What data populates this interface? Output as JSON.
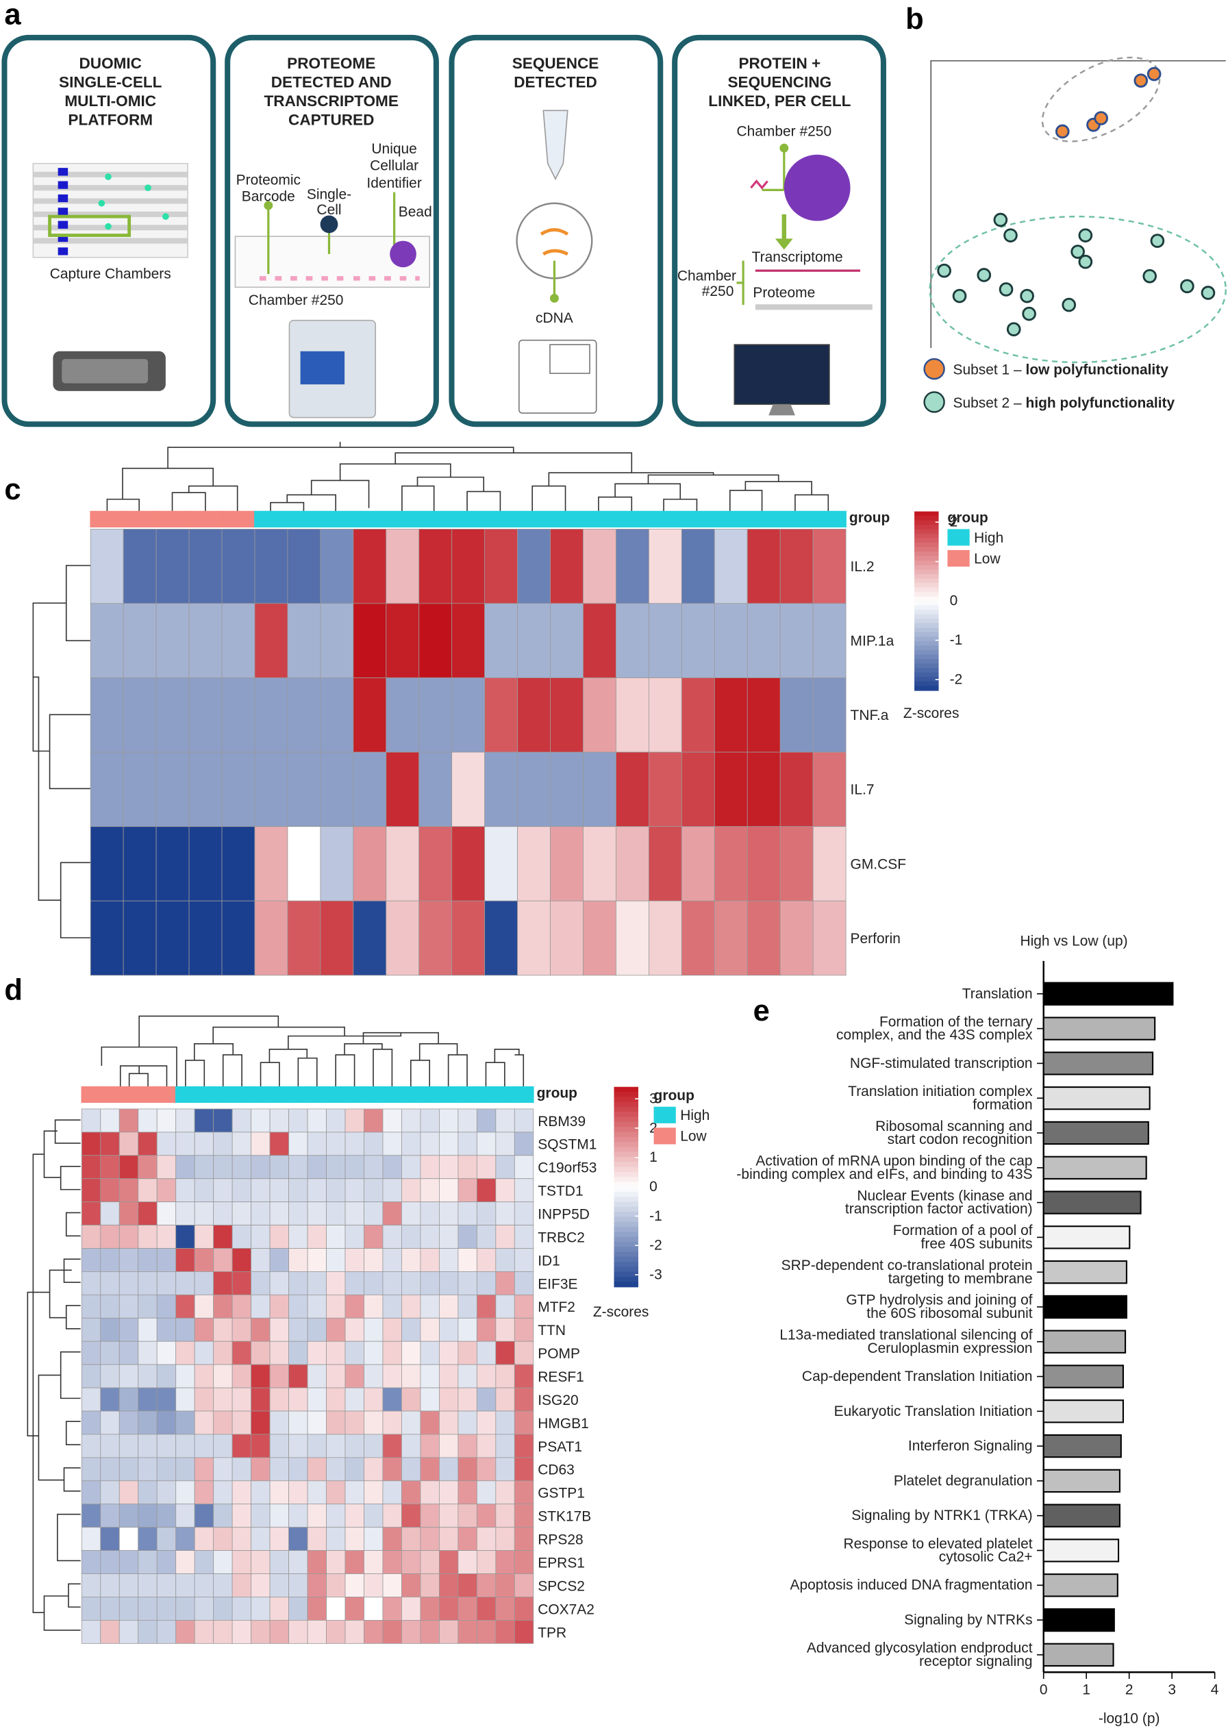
{
  "panel_labels": [
    "a",
    "b",
    "c",
    "d",
    "e"
  ],
  "diagram": {
    "boxes": [
      {
        "title": [
          "DUOMIC",
          "SINGLE-CELL",
          "MULTI-OMIC",
          "PLATFORM"
        ],
        "labels": [
          "Capture Chambers"
        ]
      },
      {
        "title": [
          "PROTEOME",
          "DETECTED AND",
          "TRANSCRIPTOME",
          "CAPTURED"
        ],
        "labels": [
          "Proteomic",
          "Barcode",
          "Single-",
          "Cell",
          "Unique",
          "Cellular",
          "Identifier",
          "Bead",
          "Chamber #250"
        ]
      },
      {
        "title": [
          "SEQUENCE",
          "DETECTED"
        ],
        "labels": [
          "cDNA"
        ]
      },
      {
        "title": [
          "PROTEIN +",
          "SEQUENCING",
          "LINKED, PER CELL"
        ],
        "labels": [
          "Chamber #250",
          "Transcriptome",
          "Chamber",
          "#250",
          "Proteome"
        ]
      }
    ]
  },
  "chart_data": [
    {
      "type": "scatter",
      "xlim": [
        0,
        100
      ],
      "ylim": [
        0,
        100
      ],
      "series": [
        {
          "name": "Subset 1 –",
          "description": "low polyfunctionality",
          "color": "#ef8a3c",
          "edgecolor": "#2f4f8f",
          "x": [
            71.2,
            75.7,
            44.6,
            55.1,
            57.7
          ],
          "y": [
            93.1,
            95.4,
            75.4,
            77.7,
            80.0
          ]
        },
        {
          "name": "Subset 2 –",
          "description": "high polyfunctionality",
          "color": "#a3dcc9",
          "edgecolor": "#1c3b3b",
          "x": [
            23.6,
            27.0,
            4.5,
            9.7,
            18.0,
            25.5,
            32.6,
            33.3,
            28.1,
            46.8,
            49.8,
            52.4,
            52.4,
            76.8,
            74.2,
            86.9,
            94.0
          ],
          "y": [
            44.6,
            39.2,
            26.9,
            18.1,
            25.4,
            20.4,
            18.1,
            11.9,
            6.5,
            15.0,
            33.5,
            39.2,
            30.0,
            37.3,
            25.0,
            21.5,
            19.2
          ]
        }
      ]
    },
    {
      "type": "heatmap",
      "group_label": "group",
      "legend_title": "group",
      "colorbar_title": "Z-scores",
      "legend": [
        {
          "name": "High",
          "color": "#22d3df"
        },
        {
          "name": "Low",
          "color": "#f4877f"
        }
      ],
      "zticks": [
        2,
        1,
        0,
        -1,
        -2
      ],
      "columns_group": [
        "Low",
        "Low",
        "Low",
        "Low",
        "Low",
        "High",
        "High",
        "High",
        "High",
        "High",
        "High",
        "High",
        "High",
        "High",
        "High",
        "High",
        "High",
        "High",
        "High",
        "High",
        "High",
        "High",
        "High"
      ],
      "rows": [
        "IL.2",
        "MIP.1a",
        "TNF.a",
        "IL.7",
        "GM.CSF",
        "Perforin"
      ],
      "values": [
        [
          -0.5,
          -1.5,
          -1.5,
          -1.5,
          -1.5,
          -1.5,
          -1.5,
          -1.2,
          1.8,
          0.6,
          1.8,
          1.8,
          1.6,
          -1.3,
          1.7,
          0.6,
          -1.3,
          0.3,
          -1.4,
          -0.5,
          1.7,
          1.6,
          1.3
        ],
        [
          -0.8,
          -0.8,
          -0.8,
          -0.8,
          -0.8,
          1.6,
          -0.8,
          -0.8,
          2,
          1.9,
          2,
          1.9,
          -0.8,
          -0.8,
          -0.8,
          1.7,
          -0.8,
          -0.8,
          -0.8,
          -0.8,
          -0.8,
          -0.8,
          -0.8
        ],
        [
          -1,
          -1,
          -1,
          -1,
          -1,
          -1,
          -1,
          -1,
          1.9,
          -1,
          -1,
          -1,
          1.4,
          1.7,
          1.7,
          0.8,
          0.4,
          0.4,
          1.5,
          1.9,
          1.9,
          -1.1,
          -1.1
        ],
        [
          -1,
          -1,
          -1,
          -1,
          -1,
          -1,
          -1,
          -1,
          -1,
          1.8,
          -1,
          0.3,
          -1,
          -1,
          -1,
          -1,
          1.7,
          1.4,
          1.6,
          1.9,
          1.9,
          1.7,
          1.2
        ],
        [
          -2,
          -2,
          -2,
          -2,
          -2,
          0.7,
          0,
          -0.6,
          0.9,
          0.4,
          1.3,
          1.7,
          -0.2,
          0.4,
          0.8,
          0.4,
          0.6,
          1.5,
          0.8,
          1.2,
          1.3,
          1.2,
          0.4
        ],
        [
          -2,
          -2,
          -2,
          -2,
          -2,
          0.8,
          1.4,
          1.6,
          -1.9,
          0.5,
          1.2,
          1.4,
          -1.9,
          0.4,
          0.5,
          0.8,
          0.2,
          0.4,
          1.2,
          1,
          1.2,
          0.8,
          0.6
        ]
      ]
    },
    {
      "type": "heatmap",
      "group_label": "group",
      "legend_title": "group",
      "colorbar_title": "Z-scores",
      "legend": [
        {
          "name": "High",
          "color": "#22d3df"
        },
        {
          "name": "Low",
          "color": "#f4877f"
        }
      ],
      "zticks": [
        3,
        2,
        1,
        0,
        -1,
        -2,
        -3
      ],
      "columns_group": [
        "Low",
        "Low",
        "Low",
        "Low",
        "Low",
        "High",
        "High",
        "High",
        "High",
        "High",
        "High",
        "High",
        "High",
        "High",
        "High",
        "High",
        "High",
        "High",
        "High",
        "High",
        "High",
        "High",
        "High",
        "High"
      ],
      "rows": [
        "RBM39",
        "SQSTM1",
        "C19orf53",
        "TSTD1",
        "INPP5D",
        "TRBC2",
        "ID1",
        "EIF3E",
        "MTF2",
        "TTN",
        "POMP",
        "RESF1",
        "ISG20",
        "HMGB1",
        "PSAT1",
        "CD63",
        "GSTP1",
        "STK17B",
        "RPS28",
        "EPRS1",
        "SPCS2",
        "COX7A2",
        "TPR"
      ],
      "values": [
        [
          -0.5,
          -0.3,
          1.5,
          -0.3,
          -0.2,
          -0.4,
          -2.5,
          -2.5,
          -0.5,
          -0.3,
          -0.4,
          -0.5,
          -0.3,
          -0.5,
          0.6,
          1.5,
          -0.2,
          -0.4,
          -0.5,
          -0.3,
          -0.4,
          -1,
          -0.4,
          -0.5
        ],
        [
          2.5,
          2.3,
          0.8,
          2.3,
          -0.5,
          -0.5,
          -0.5,
          -0.6,
          -0.4,
          0.3,
          2.2,
          -0.3,
          -0.5,
          -0.5,
          -0.5,
          -0.6,
          -0.3,
          -0.5,
          -0.4,
          -0.3,
          -0.5,
          -0.3,
          -0.4,
          -1
        ],
        [
          2.3,
          2,
          2.5,
          1.5,
          0.5,
          -1,
          -0.8,
          -0.8,
          -0.8,
          -0.9,
          -0.8,
          -0.7,
          -0.9,
          -0.8,
          -0.8,
          -0.7,
          -0.9,
          -0.5,
          0.5,
          0.4,
          0.6,
          0.5,
          -0.7,
          -0.3
        ],
        [
          2.3,
          1.8,
          1.6,
          0.6,
          1,
          -0.5,
          -0.6,
          -0.5,
          -0.6,
          -0.5,
          -0.5,
          -0.6,
          -0.5,
          -0.6,
          -0.5,
          -0.6,
          -0.5,
          0.5,
          0.3,
          0.2,
          1,
          2.3,
          0.4,
          -0.4
        ],
        [
          2.2,
          -0.5,
          1.6,
          2.3,
          -0.2,
          -0.4,
          -0.4,
          -0.5,
          -0.4,
          -0.5,
          -0.4,
          -0.5,
          -0.4,
          -0.5,
          -0.4,
          -0.5,
          1.5,
          -0.4,
          -0.5,
          -0.4,
          -0.5,
          -0.6,
          -0.4,
          -0.5
        ],
        [
          0.8,
          1,
          1,
          0.6,
          0.5,
          -2.8,
          0.5,
          2.5,
          -0.6,
          -0.5,
          0.6,
          -0.4,
          0.5,
          -0.3,
          -0.5,
          1.3,
          -0.5,
          -0.6,
          -0.5,
          -0.4,
          -1,
          -0.6,
          0.5,
          -0.5
        ],
        [
          -1,
          -1,
          -0.9,
          -1,
          -1,
          2.3,
          1.5,
          1,
          2.5,
          -0.5,
          -1,
          0.3,
          0.2,
          -0.3,
          0.4,
          0.3,
          -0.5,
          0.3,
          0.5,
          -0.4,
          0.2,
          0.5,
          -0.6,
          -0.5
        ],
        [
          -0.7,
          -0.7,
          -0.7,
          -0.7,
          -0.7,
          -0.7,
          -0.7,
          2.3,
          2.2,
          -0.7,
          -0.5,
          -0.7,
          -0.6,
          0.4,
          -0.7,
          -0.7,
          -0.6,
          -0.6,
          -0.7,
          -0.7,
          -0.6,
          -0.7,
          1.2,
          -0.7
        ],
        [
          -0.8,
          -0.8,
          -0.7,
          -0.8,
          -1,
          2,
          0.3,
          1.5,
          1,
          -0.5,
          0.8,
          -0.7,
          -0.5,
          0.5,
          1.3,
          0.3,
          -0.6,
          0.5,
          -0.4,
          0.3,
          -0.6,
          1.8,
          -0.5,
          1
        ],
        [
          -0.8,
          -1.2,
          -1,
          -0.3,
          -1,
          -1,
          1.3,
          0.6,
          0.8,
          1.5,
          0.4,
          -0.7,
          -0.8,
          1.2,
          0.4,
          -0.3,
          0.6,
          -0.7,
          0.3,
          -0.5,
          -0.3,
          1.3,
          0.5,
          1
        ],
        [
          -0.9,
          -0.8,
          -0.9,
          -0.4,
          -0.2,
          0.6,
          -0.5,
          0.7,
          2,
          0.8,
          0.5,
          -0.8,
          0.4,
          0.5,
          -0.6,
          -0.3,
          0.6,
          0.2,
          -0.5,
          0.4,
          0.7,
          -0.5,
          2.3,
          0.7
        ],
        [
          -0.8,
          -0.6,
          -0.5,
          -0.6,
          -0.8,
          -0.3,
          0.6,
          0.3,
          0.8,
          2.5,
          1,
          2.3,
          -0.4,
          0.5,
          1.2,
          -0.4,
          0.4,
          0.3,
          -0.3,
          0.5,
          -0.4,
          0.5,
          0.6,
          2
        ],
        [
          -0.5,
          -1.8,
          -1.2,
          -1.8,
          -1.8,
          -0.3,
          0.7,
          0.5,
          0.5,
          2.3,
          0.6,
          0.5,
          -0.3,
          0.6,
          -0.4,
          0.5,
          -1.8,
          0.8,
          -0.3,
          0.6,
          0.5,
          -1,
          0.6,
          1.8
        ],
        [
          -1,
          -0.5,
          -1,
          -1.2,
          -1.5,
          -1.2,
          0.5,
          0.8,
          0.6,
          2.5,
          -0.5,
          -0.3,
          -0.2,
          0.8,
          0.7,
          0.3,
          0.5,
          -0.4,
          1.5,
          0.5,
          -0.5,
          0.4,
          -0.6,
          1.5
        ],
        [
          -0.6,
          -0.6,
          -0.6,
          -0.6,
          -0.6,
          -0.6,
          -0.6,
          -0.6,
          2.2,
          2.2,
          -0.6,
          -0.5,
          -0.6,
          -0.5,
          -0.6,
          -0.6,
          2,
          -0.5,
          1,
          0.3,
          1,
          0.5,
          -0.6,
          2
        ],
        [
          -0.8,
          -0.8,
          -0.8,
          -0.7,
          -0.8,
          -0.8,
          1,
          -0.5,
          -0.6,
          1.2,
          -0.6,
          -0.7,
          0.8,
          -0.6,
          -0.8,
          0.5,
          1.5,
          -0.7,
          1.5,
          -0.7,
          1.6,
          1,
          -0.6,
          2
        ],
        [
          -1,
          -0.6,
          0.6,
          -0.8,
          -0.6,
          -0.3,
          1,
          -0.5,
          0.4,
          -0.5,
          0.3,
          0.4,
          -0.4,
          0.8,
          -0.4,
          0.3,
          -0.5,
          1.5,
          0.5,
          0.4,
          1.3,
          -0.4,
          0.5,
          1.5
        ],
        [
          -1.8,
          -1,
          -1.2,
          -1.3,
          -1.2,
          -0.5,
          -2,
          -0.8,
          0.4,
          -0.6,
          -0.3,
          -0.5,
          0.3,
          -0.5,
          0.4,
          -0.6,
          0.5,
          2,
          1,
          0.5,
          0.8,
          1.3,
          0.6,
          1.5
        ],
        [
          -0.3,
          -2,
          0,
          -1.8,
          -0.8,
          -1.5,
          0.5,
          0.7,
          0.5,
          -0.5,
          0.4,
          -2,
          0.5,
          -0.5,
          0.3,
          -0.3,
          1.5,
          0.8,
          1,
          0.6,
          1.3,
          0.5,
          0.6,
          1.5
        ],
        [
          -1,
          -1,
          -1,
          -0.8,
          -1,
          0.3,
          -0.8,
          -0.3,
          0.6,
          0.5,
          -0.6,
          -0.5,
          1.5,
          0.5,
          1.5,
          0.3,
          1.3,
          1,
          0.7,
          1.8,
          0.4,
          0.6,
          1.4,
          1.5
        ],
        [
          -0.6,
          -0.6,
          -0.6,
          -0.6,
          -0.6,
          -0.6,
          -0.6,
          -0.6,
          0.7,
          0.4,
          -0.6,
          -0.6,
          1.4,
          0.7,
          0.2,
          0.4,
          0.2,
          1.5,
          0.8,
          1.8,
          2,
          1.3,
          1.5,
          1
        ],
        [
          -0.8,
          -0.8,
          -0.8,
          -0.8,
          -0.8,
          -0.8,
          -0.6,
          -0.8,
          -0.6,
          -0.5,
          0.5,
          -0.8,
          1.5,
          0,
          1.5,
          0,
          1.2,
          0.4,
          1.5,
          1.8,
          1.5,
          2,
          1.5,
          1.8
        ],
        [
          -0.5,
          0.8,
          -0.5,
          -0.8,
          -0.7,
          1.2,
          0.6,
          0.6,
          0.4,
          0.8,
          1,
          0.5,
          0.4,
          0.8,
          0.5,
          1.3,
          1.6,
          1,
          1.3,
          0.8,
          1.5,
          1.5,
          1.8,
          2.2
        ]
      ]
    },
    {
      "type": "hbar",
      "title": "High vs Low (up)",
      "xlabel": "-log10 (p)",
      "xlim": [
        0,
        4
      ],
      "xticks": [
        0,
        1,
        2,
        3,
        4
      ],
      "categories": [
        [
          "Translation"
        ],
        [
          "Formation of the ternary",
          "complex, and  the 43S complex"
        ],
        [
          "NGF-stimulated transcription"
        ],
        [
          "Translation initiation complex",
          "formation"
        ],
        [
          "Ribosomal scanning and",
          "start codon recognition"
        ],
        [
          "Activation of mRNA upon binding of the cap",
          "-binding complex and eIFs, and binding to 43S"
        ],
        [
          "Nuclear Events (kinase and",
          "transcription factor activation)"
        ],
        [
          "Formation of a pool of",
          "free 40S subunits"
        ],
        [
          "SRP-dependent co-translational protein",
          "targeting to membrane"
        ],
        [
          "GTP hydrolysis and joining of",
          "the 60S ribosomal subunit"
        ],
        [
          "L13a-mediated translational silencing of",
          "Ceruloplasmin expression"
        ],
        [
          "Cap-dependent Translation Initiation"
        ],
        [
          "Eukaryotic Translation Initiation"
        ],
        [
          "Interferon Signaling"
        ],
        [
          "Platelet degranulation"
        ],
        [
          "Signaling by NTRK1 (TRKA)"
        ],
        [
          "Response to elevated platelet",
          "cytosolic Ca2+"
        ],
        [
          "Apoptosis induced DNA fragmentation"
        ],
        [
          "Signaling by NTRKs"
        ],
        [
          "Advanced glycosylation endproduct",
          "receptor signaling"
        ]
      ],
      "values": [
        3.02,
        2.6,
        2.55,
        2.48,
        2.45,
        2.4,
        2.27,
        2.01,
        1.94,
        1.94,
        1.91,
        1.86,
        1.86,
        1.81,
        1.78,
        1.78,
        1.75,
        1.73,
        1.65,
        1.63
      ],
      "colors": [
        "#000000",
        "#b4b4b4",
        "#8a8a8a",
        "#e0e0e0",
        "#707070",
        "#c0c0c0",
        "#606060",
        "#f2f2f2",
        "#c8c8c8",
        "#000000",
        "#b0b0b0",
        "#909090",
        "#e0e0e0",
        "#707070",
        "#c0c0c0",
        "#606060",
        "#f2f2f2",
        "#b8b8b8",
        "#000000",
        "#b0b0b0"
      ]
    }
  ]
}
